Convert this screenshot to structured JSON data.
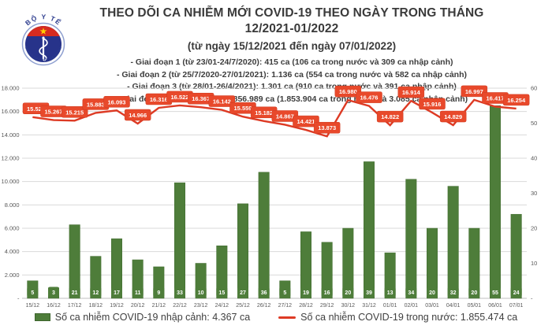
{
  "header": {
    "title": "THEO DÕI CA NHIỄM MỚI COVID-19 THEO NGÀY TRONG THÁNG 12/2021-01/2022",
    "subtitle": "(từ ngày 15/12/2021 đến ngày 07/01/2022)",
    "stages": [
      "- Giai đoạn 1 (từ 23/01-24/7/2020): 415 ca (106 ca trong nước và 309 ca nhập cảnh)",
      "- Giai đoạn 2 (từ 25/7/2020-27/01/2021): 1.136 ca (554 ca trong nước và 582 ca nhập cảnh)",
      "- Giai đoạn 3 (từ 28/01-26/4/2021): 1.301 ca (910 ca trong nước và 391 ca nhập cảnh)",
      "- Giai đoạn 4 (từ 27/4/2021): 1.856.989 ca (1.853.904 ca trong nước và 3.085 ca nhập cảnh)"
    ],
    "logo": {
      "top_text": "BỘ Y TẾ",
      "bottom_text": "MINISTRY OF HEALTH"
    }
  },
  "chart_data": {
    "type": "bar",
    "combo": "bar+line",
    "grid": true,
    "legend_position": "bottom",
    "categories": [
      "15/12",
      "16/12",
      "17/12",
      "18/12",
      "19/12",
      "20/12",
      "21/12",
      "22/12",
      "23/12",
      "24/12",
      "25/12",
      "26/12",
      "27/12",
      "28/12",
      "29/12",
      "30/12",
      "31/12",
      "01/01",
      "02/01",
      "03/01",
      "04/01",
      "05/01",
      "06/01",
      "07/01"
    ],
    "series": [
      {
        "name": "Số ca nhiễm COVID-19 nhập cảnh",
        "type": "bar",
        "axis": "right",
        "color": "#4e7d3a",
        "values": [
          5,
          3,
          21,
          12,
          17,
          11,
          9,
          33,
          10,
          15,
          27,
          36,
          5,
          19,
          16,
          20,
          39,
          13,
          34,
          20,
          32,
          20,
          55,
          24
        ]
      },
      {
        "name": "Số ca nhiễm COVID-19 trong nước",
        "type": "line",
        "axis": "left",
        "color": "#e8492b",
        "values": [
          15522,
          15267,
          15215,
          15883,
          16093,
          14966,
          16316,
          16522,
          16367,
          16142,
          15559,
          15182,
          14867,
          14421,
          13873,
          16980,
          16476,
          14822,
          16914,
          15916,
          14829,
          16997,
          16417,
          16254
        ],
        "labels": [
          "15.522",
          "15.267",
          "15.215",
          "15.883",
          "16.093",
          "14.966",
          "16.316",
          "16.522",
          "16.367",
          "16.142",
          "15.559",
          "15.182",
          "14.867",
          "14.421",
          "13.873",
          "16.980",
          "16.476",
          "14.822",
          "16.914",
          "15.916",
          "14.829",
          "16.997",
          "16.417",
          "16.254"
        ]
      }
    ],
    "left_axis": {
      "max": 18000,
      "interval": 2000,
      "ticks": [
        "18.000",
        "16.000",
        "14.000",
        "12.000",
        "10.000",
        "8.000",
        "6.000",
        "4.000",
        "2.000",
        "-"
      ]
    },
    "right_axis": {
      "max": 60,
      "interval": 10,
      "ticks": [
        "60",
        "50",
        "40",
        "30",
        "20",
        "10",
        "-"
      ]
    },
    "legend": [
      {
        "swatch": "bar",
        "color": "#4e7d3a",
        "label": "Số ca nhiễm COVID-19 nhập cảnh: 4.367 ca"
      },
      {
        "swatch": "line",
        "color": "#de3b25",
        "label": "Số ca nhiễm COVID-19 trong nước: 1.855.474 ca"
      }
    ],
    "colors": {
      "bar_green": "#4e7d3a",
      "line_red": "#dd3a24",
      "label_box_red": "#e8492b",
      "gridline": "#d9d9d9",
      "axis_line": "#bfbfbf"
    }
  }
}
